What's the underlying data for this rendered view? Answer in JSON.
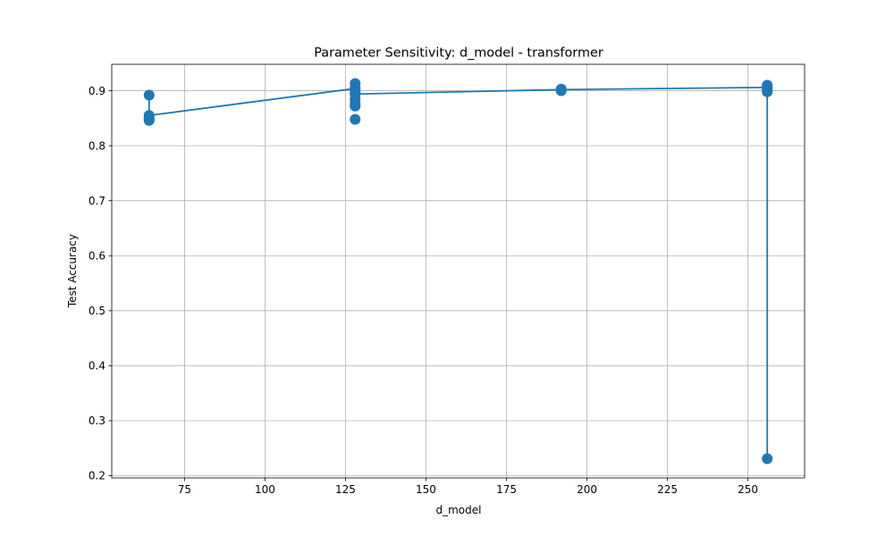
{
  "chart_data": {
    "type": "line",
    "title": "Parameter Sensitivity: d_model - transformer",
    "xlabel": "d_model",
    "ylabel": "Test Accuracy",
    "xlim": [
      52.4,
      267.6
    ],
    "ylim": [
      0.196,
      0.948
    ],
    "xticks": [
      75,
      100,
      125,
      150,
      175,
      200,
      225,
      250
    ],
    "yticks": [
      0.2,
      0.3,
      0.4,
      0.5,
      0.6,
      0.7,
      0.8,
      0.9
    ],
    "grid": true,
    "legend": "none",
    "color": "#1f77b4",
    "series": [
      {
        "x": [
          64,
          64,
          64,
          64,
          64,
          128,
          128,
          128,
          128,
          128,
          128,
          128,
          128,
          128,
          192,
          192,
          192,
          192,
          256,
          256,
          256,
          256,
          256,
          256
        ],
        "y": [
          0.892,
          0.855,
          0.851,
          0.848,
          0.846,
          0.913,
          0.905,
          0.901,
          0.896,
          0.893,
          0.884,
          0.876,
          0.872,
          0.848,
          0.903,
          0.902,
          0.901,
          0.9,
          0.91,
          0.906,
          0.903,
          0.9,
          0.898,
          0.231
        ]
      }
    ],
    "line": {
      "x": [
        64,
        64,
        128,
        128,
        128,
        192,
        256,
        256
      ],
      "y": [
        0.892,
        0.855,
        0.904,
        0.894,
        0.894,
        0.902,
        0.906,
        0.231
      ]
    }
  }
}
